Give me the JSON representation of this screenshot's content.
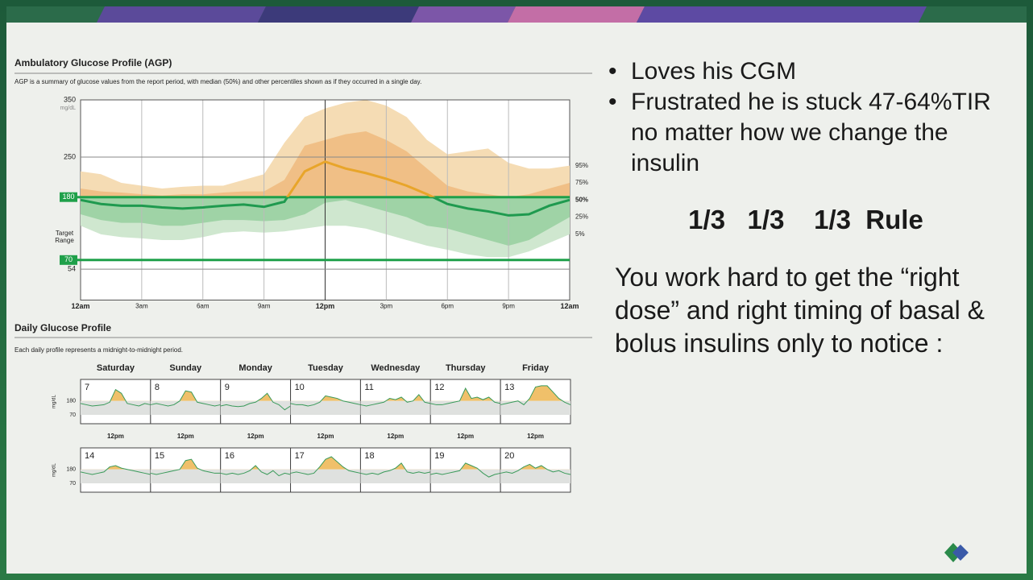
{
  "agp": {
    "title": "Ambulatory Glucose Profile (AGP)",
    "description": "AGP is a summary of glucose values from the report period, with median (50%) and other percentiles shown as if they occurred in a single day.",
    "y_unit": "mg/dL",
    "target_label": "Target Range",
    "ylim": [
      0,
      350
    ],
    "yticks": [
      350,
      250,
      180,
      70,
      54
    ],
    "target": [
      70,
      180
    ],
    "xlim": [
      0,
      24
    ],
    "xticks": [
      {
        "value": 0,
        "label": "12am"
      },
      {
        "value": 3,
        "label": "3am"
      },
      {
        "value": 6,
        "label": "6am"
      },
      {
        "value": 9,
        "label": "9am"
      },
      {
        "value": 12,
        "label": "12pm"
      },
      {
        "value": 15,
        "label": "3pm"
      },
      {
        "value": 18,
        "label": "6pm"
      },
      {
        "value": 21,
        "label": "9pm"
      },
      {
        "value": 24,
        "label": "12am"
      }
    ],
    "x": [
      0,
      1,
      2,
      3,
      4,
      5,
      6,
      7,
      8,
      9,
      10,
      11,
      12,
      13,
      14,
      15,
      16,
      17,
      18,
      19,
      20,
      21,
      22,
      23,
      24
    ],
    "series": [
      {
        "name": "5%",
        "values": [
          130,
          115,
          110,
          108,
          105,
          105,
          110,
          118,
          120,
          118,
          120,
          125,
          130,
          130,
          125,
          115,
          105,
          95,
          88,
          80,
          75,
          75,
          85,
          100,
          115
        ]
      },
      {
        "name": "25%",
        "values": [
          150,
          140,
          135,
          135,
          130,
          130,
          135,
          140,
          140,
          138,
          140,
          150,
          170,
          175,
          165,
          155,
          145,
          130,
          125,
          115,
          105,
          95,
          105,
          125,
          145
        ]
      },
      {
        "name": "50%",
        "values": [
          175,
          168,
          165,
          165,
          162,
          160,
          162,
          165,
          167,
          163,
          172,
          225,
          242,
          230,
          222,
          212,
          200,
          185,
          168,
          160,
          155,
          148,
          150,
          165,
          175
        ]
      },
      {
        "name": "75%",
        "values": [
          195,
          190,
          188,
          185,
          183,
          185,
          185,
          188,
          190,
          190,
          210,
          270,
          280,
          290,
          295,
          280,
          260,
          230,
          200,
          190,
          185,
          180,
          185,
          195,
          205
        ]
      },
      {
        "name": "95%",
        "values": [
          225,
          220,
          205,
          200,
          195,
          198,
          200,
          200,
          210,
          220,
          275,
          320,
          335,
          345,
          350,
          340,
          320,
          280,
          255,
          260,
          265,
          240,
          230,
          230,
          235
        ]
      }
    ]
  },
  "daily": {
    "title": "Daily Glucose Profile",
    "description": "Each daily profile represents a midnight-to-midnight period.",
    "y_unit": "mg/dL",
    "ylim": [
      0,
      350
    ],
    "yticks": [
      180,
      70
    ],
    "target": [
      70,
      180
    ],
    "midday_label": "12pm",
    "weekdays": [
      "Saturday",
      "Sunday",
      "Monday",
      "Tuesday",
      "Wednesday",
      "Thursday",
      "Friday"
    ],
    "weeks": [
      {
        "days": [
          {
            "label": "7",
            "values": [
              160,
              150,
              140,
              145,
              150,
              170,
              270,
              240,
              160,
              150,
              140,
              160,
              150
            ]
          },
          {
            "label": "8",
            "values": [
              150,
              160,
              150,
              140,
              150,
              180,
              260,
              250,
              170,
              160,
              150,
              140,
              150
            ]
          },
          {
            "label": "9",
            "values": [
              140,
              150,
              140,
              135,
              140,
              160,
              170,
              200,
              240,
              170,
              150,
              110,
              140
            ]
          },
          {
            "label": "10",
            "values": [
              160,
              150,
              150,
              140,
              150,
              170,
              220,
              210,
              200,
              180,
              170,
              160,
              150
            ]
          },
          {
            "label": "11",
            "values": [
              150,
              140,
              150,
              160,
              170,
              200,
              190,
              210,
              170,
              180,
              230,
              170,
              160
            ]
          },
          {
            "label": "12",
            "values": [
              160,
              150,
              150,
              160,
              170,
              180,
              280,
              200,
              210,
              190,
              210,
              170,
              160
            ]
          },
          {
            "label": "13",
            "values": [
              150,
              160,
              170,
              180,
              150,
              200,
              290,
              300,
              300,
              250,
              200,
              170,
              150
            ]
          }
        ]
      },
      {
        "days": [
          {
            "label": "14",
            "values": [
              160,
              150,
              140,
              150,
              160,
              200,
              210,
              190,
              180,
              170,
              160,
              150,
              140
            ]
          },
          {
            "label": "15",
            "values": [
              150,
              140,
              150,
              160,
              170,
              180,
              250,
              260,
              190,
              170,
              160,
              150,
              150
            ]
          },
          {
            "label": "16",
            "values": [
              150,
              140,
              150,
              140,
              150,
              170,
              210,
              160,
              140,
              170,
              130,
              150,
              140
            ]
          },
          {
            "label": "17",
            "values": [
              150,
              160,
              150,
              140,
              150,
              200,
              260,
              280,
              240,
              200,
              170,
              160,
              150
            ]
          },
          {
            "label": "18",
            "values": [
              150,
              140,
              150,
              140,
              160,
              170,
              190,
              230,
              160,
              150,
              160,
              150,
              160
            ]
          },
          {
            "label": "19",
            "values": [
              140,
              150,
              140,
              150,
              160,
              170,
              230,
              210,
              190,
              150,
              120,
              140,
              150
            ]
          },
          {
            "label": "20",
            "values": [
              150,
              160,
              150,
              170,
              200,
              220,
              190,
              210,
              180,
              160,
              170,
              150,
              140
            ]
          }
        ]
      }
    ]
  },
  "slide": {
    "bullets": [
      "Loves his CGM",
      "Frustrated he is stuck 47-64%TIR no matter how we change the insulin"
    ],
    "rule": "1/3   1/3    1/3  Rule",
    "paragraph": "You work hard to get the “right dose” and right timing of  basal & bolus insulins only to notice :"
  }
}
